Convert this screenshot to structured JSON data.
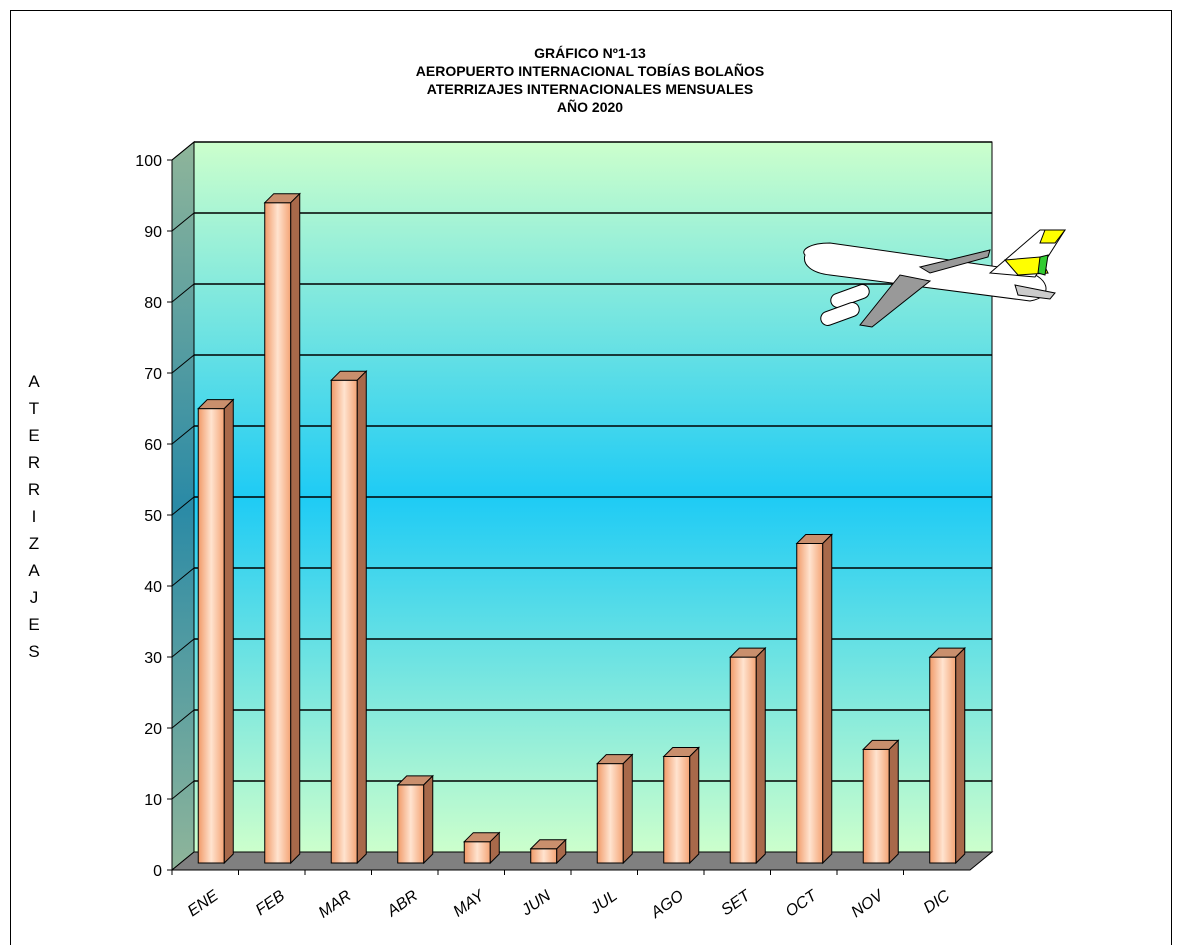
{
  "chart_data": {
    "type": "bar3d",
    "title": [
      "GRÁFICO Nº1-13",
      "AEROPUERTO INTERNACIONAL TOBÍAS BOLAÑOS",
      "ATERRIZAJES INTERNACIONALES MENSUALES",
      "AÑO 2020"
    ],
    "y_label": "ATERRIZAJES",
    "categories": [
      "ENE",
      "FEB",
      "MAR",
      "ABR",
      "MAY",
      "JUN",
      "JUL",
      "AGO",
      "SET",
      "OCT",
      "NOV",
      "DIC"
    ],
    "values": [
      64,
      93,
      68,
      11,
      3,
      2,
      14,
      15,
      29,
      45,
      16,
      29
    ],
    "ylim": [
      0,
      100
    ],
    "yticks": [
      0,
      10,
      20,
      30,
      40,
      50,
      60,
      70,
      80,
      90,
      100
    ],
    "grid": true,
    "color": "#f4b183"
  }
}
